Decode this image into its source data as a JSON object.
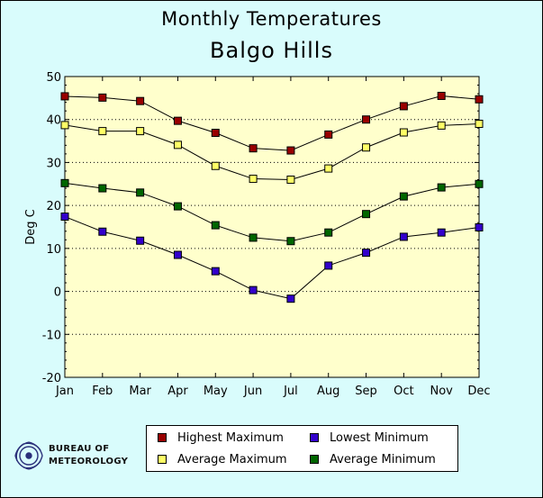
{
  "chart_data": {
    "type": "line",
    "title": "Monthly Temperatures",
    "subtitle": "Balgo Hills",
    "ylabel": "Deg C",
    "xlabel": "",
    "categories": [
      "Jan",
      "Feb",
      "Mar",
      "Apr",
      "May",
      "Jun",
      "Jul",
      "Aug",
      "Sep",
      "Oct",
      "Nov",
      "Dec"
    ],
    "ylim": [
      -20,
      50
    ],
    "yticks": [
      "-20",
      "-10",
      "0",
      "10",
      "20",
      "30",
      "40",
      "50"
    ],
    "grid": "horizontal dotted",
    "legend_position": "bottom",
    "plot_background": "#ffffcc",
    "series": [
      {
        "name": "Highest Maximum",
        "color": "#990000",
        "values": [
          45.4,
          45.1,
          44.3,
          39.7,
          36.9,
          33.3,
          32.8,
          36.5,
          40.0,
          43.1,
          45.5,
          44.7
        ]
      },
      {
        "name": "Average Maximum",
        "color": "#ffff66",
        "values": [
          38.7,
          37.3,
          37.3,
          34.1,
          29.2,
          26.2,
          26.0,
          28.6,
          33.5,
          37.0,
          38.6,
          39.0
        ]
      },
      {
        "name": "Average Minimum",
        "color": "#006600",
        "values": [
          25.2,
          24.0,
          23.0,
          19.8,
          15.4,
          12.5,
          11.7,
          13.7,
          18.0,
          22.1,
          24.2,
          25.0
        ]
      },
      {
        "name": "Lowest Minimum",
        "color": "#3300cc",
        "values": [
          17.4,
          13.9,
          11.8,
          8.5,
          4.7,
          0.3,
          -1.7,
          6.0,
          9.0,
          12.7,
          13.7,
          14.9
        ]
      }
    ]
  },
  "legend": {
    "highest_max": "Highest Maximum",
    "lowest_min": "Lowest Minimum",
    "average_max": "Average Maximum",
    "average_min": "Average Minimum"
  },
  "logo": {
    "line1": "Bureau of",
    "line2": "Meteorology"
  }
}
